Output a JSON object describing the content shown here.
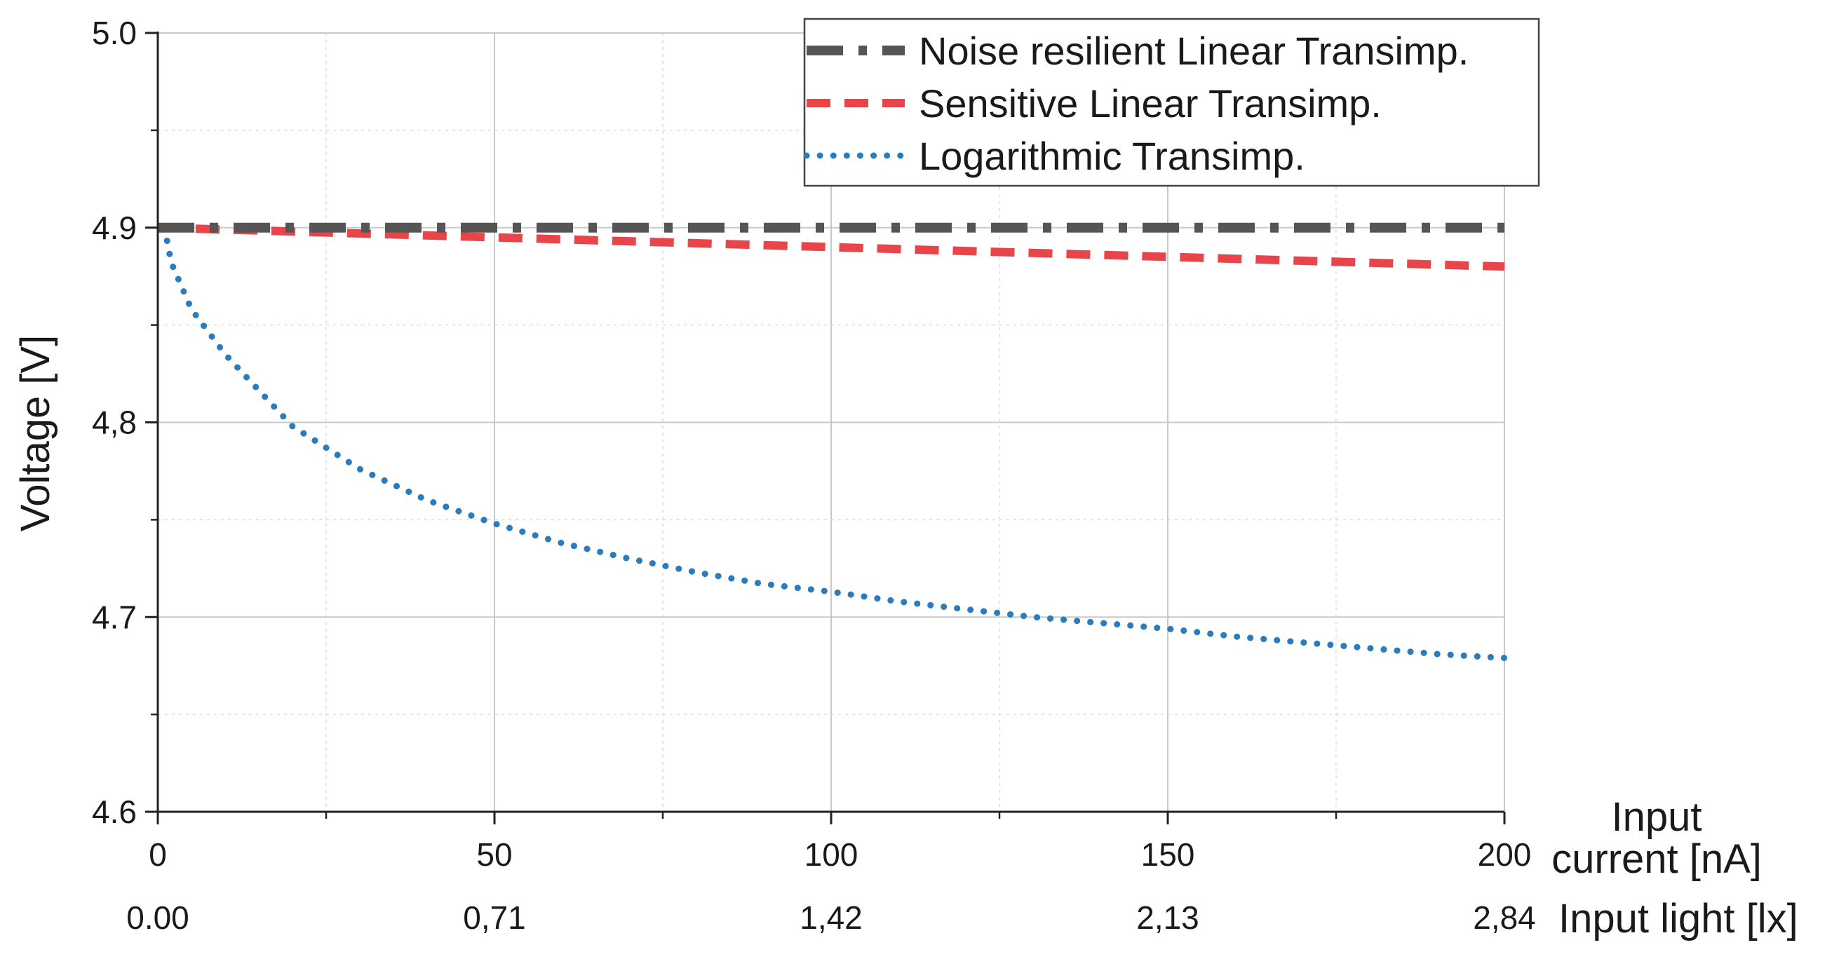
{
  "chart_data": {
    "type": "line",
    "title": "",
    "ylabel": "Voltage [V]",
    "xlabel_line1": "Input",
    "xlabel_line2": "current [nA]",
    "secondary_xlabel": "Input light [lx]",
    "xlim": [
      0,
      200
    ],
    "ylim": [
      4.6,
      5.0
    ],
    "x_ticks": [
      {
        "value": 0,
        "label": "0"
      },
      {
        "value": 50,
        "label": "50"
      },
      {
        "value": 100,
        "label": "100"
      },
      {
        "value": 150,
        "label": "150"
      },
      {
        "value": 200,
        "label": "200"
      }
    ],
    "y_ticks": [
      {
        "value": 4.6,
        "label": "4.6"
      },
      {
        "value": 4.7,
        "label": "4.7"
      },
      {
        "value": 4.8,
        "label": "4,8"
      },
      {
        "value": 4.9,
        "label": "4.9"
      },
      {
        "value": 5.0,
        "label": "5.0"
      }
    ],
    "secondary_x_ticks": [
      {
        "value": 0,
        "label": "0.00"
      },
      {
        "value": 50,
        "label": "0,71"
      },
      {
        "value": 100,
        "label": "1,42"
      },
      {
        "value": 150,
        "label": "2,13"
      },
      {
        "value": 200,
        "label": "2,84"
      }
    ],
    "grid": true,
    "legend_position": "top-right",
    "series": [
      {
        "name": "Noise resilient Linear Transimp.",
        "color": "#555555",
        "style": "dash-dot",
        "x": [
          0,
          50,
          100,
          150,
          200
        ],
        "y": [
          4.9,
          4.9,
          4.9,
          4.9,
          4.9
        ]
      },
      {
        "name": "Sensitive Linear Transimp.",
        "color": "#e8454a",
        "style": "dashed",
        "x": [
          0,
          50,
          100,
          150,
          200
        ],
        "y": [
          4.9,
          4.895,
          4.89,
          4.885,
          4.88
        ]
      },
      {
        "name": "Logarithmic Transimp.",
        "color": "#2b7bbd",
        "style": "dotted",
        "x": [
          1,
          2,
          5,
          10,
          20,
          30,
          40,
          50,
          60,
          70,
          80,
          90,
          100,
          110,
          120,
          130,
          140,
          150,
          160,
          170,
          180,
          190,
          200
        ],
        "y": [
          4.9,
          4.882,
          4.858,
          4.835,
          4.798,
          4.776,
          4.76,
          4.748,
          4.738,
          4.73,
          4.723,
          4.717,
          4.713,
          4.708,
          4.704,
          4.7,
          4.697,
          4.694,
          4.69,
          4.687,
          4.684,
          4.681,
          4.679
        ]
      }
    ]
  }
}
